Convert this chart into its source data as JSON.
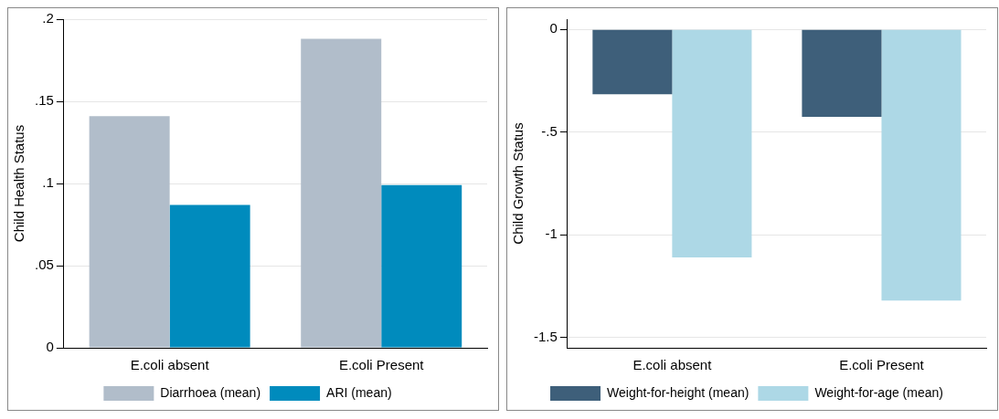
{
  "chart_data": [
    {
      "type": "bar",
      "ylabel": "Child Health Status",
      "categories": [
        "E.coli absent",
        "E.coli Present"
      ],
      "series": [
        {
          "name": "Diarrhoea (mean)",
          "color": "#b1bdca",
          "values": [
            0.141,
            0.188
          ]
        },
        {
          "name": "ARI (mean)",
          "color": "#008bbd",
          "values": [
            0.087,
            0.099
          ]
        }
      ],
      "ylim": [
        0,
        0.2
      ],
      "yticks": [
        {
          "value": 0,
          "label": "0"
        },
        {
          "value": 0.05,
          "label": ".05"
        },
        {
          "value": 0.1,
          "label": ".1"
        },
        {
          "value": 0.15,
          "label": ".15"
        },
        {
          "value": 0.2,
          "label": ".2"
        }
      ],
      "grid": "y",
      "legend": "bottom"
    },
    {
      "type": "bar",
      "ylabel": "Child Growth Status",
      "categories": [
        "E.coli absent",
        "E.coli Present"
      ],
      "series": [
        {
          "name": "Weight-for-height (mean)",
          "color": "#3e5f7a",
          "values": [
            -0.315,
            -0.425
          ]
        },
        {
          "name": "Weight-for-age (mean)",
          "color": "#add8e6",
          "values": [
            -1.11,
            -1.32
          ]
        }
      ],
      "ylim": [
        -1.55,
        0.05
      ],
      "yticks": [
        {
          "value": -1.5,
          "label": "-1.5"
        },
        {
          "value": -1,
          "label": "-1"
        },
        {
          "value": -0.5,
          "label": "-.5"
        },
        {
          "value": 0,
          "label": "0"
        }
      ],
      "grid": "y",
      "legend": "bottom"
    }
  ]
}
